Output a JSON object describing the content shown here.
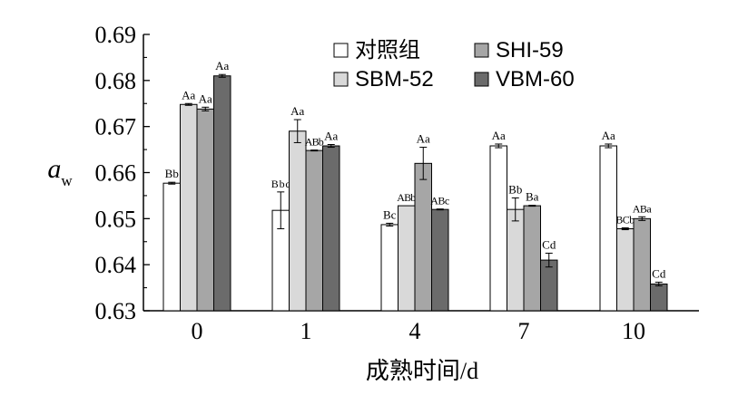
{
  "chart_data": {
    "type": "bar",
    "xlabel": "成熟时间/d",
    "ylabel": "a",
    "ylabel_subscript": "w",
    "ylim": [
      0.63,
      0.69
    ],
    "yticks": [
      "0.63",
      "0.64",
      "0.65",
      "0.66",
      "0.67",
      "0.68",
      "0.69"
    ],
    "categories": [
      "0",
      "1",
      "4",
      "7",
      "10"
    ],
    "legend_position": "top-right",
    "grid": false,
    "series": [
      {
        "name": "对照组",
        "color": "#ffffff",
        "values": [
          0.6577,
          0.6518,
          0.6487,
          0.6658,
          0.6658
        ],
        "errors": [
          0.0002,
          0.004,
          0.0003,
          0.0004,
          0.0004
        ],
        "labels": [
          "Bb",
          "Bbc",
          "Bc",
          "Aa",
          "Aa"
        ]
      },
      {
        "name": "SBM-52",
        "color": "#d9d9d9",
        "values": [
          0.6748,
          0.669,
          0.6528,
          0.652,
          0.6478
        ],
        "errors": [
          0.0002,
          0.0025,
          0.0,
          0.0025,
          0.0002
        ],
        "labels": [
          "Aa",
          "Aa",
          "ABb",
          "Bb",
          "BCb"
        ]
      },
      {
        "name": "SHI-59",
        "color": "#a6a6a6",
        "values": [
          0.6738,
          0.6648,
          0.662,
          0.6528,
          0.65
        ],
        "errors": [
          0.0004,
          0.0001,
          0.0035,
          0.0001,
          0.0004
        ],
        "labels": [
          "Aa",
          "ABb",
          "Aa",
          "Ba",
          "ABa"
        ]
      },
      {
        "name": "VBM-60",
        "color": "#6b6b6b",
        "values": [
          0.681,
          0.6658,
          0.652,
          0.641,
          0.6358
        ],
        "errors": [
          0.0003,
          0.0003,
          0.0001,
          0.0015,
          0.0004
        ],
        "labels": [
          "Aa",
          "Aa",
          "ABc",
          "Cd",
          "Cd"
        ]
      }
    ]
  }
}
